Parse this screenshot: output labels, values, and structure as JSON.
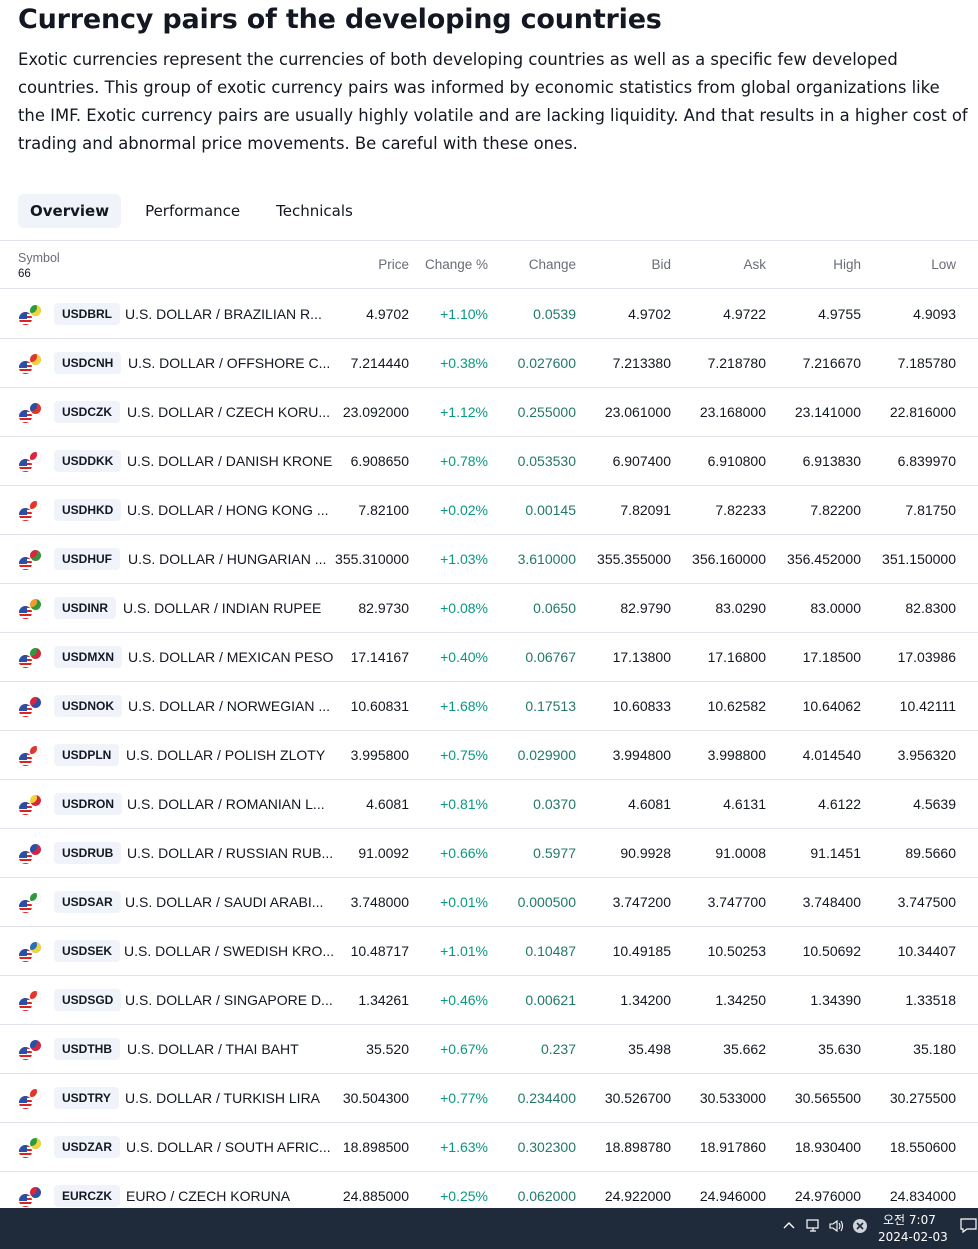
{
  "page": {
    "title": "Currency pairs of the developing countries",
    "description": "Exotic currencies represent the currencies of both developing countries as well as a specific few developed countries. This group of exotic currency pairs was informed by economic statistics from global organizations like the IMF. Exotic currency pairs are usually highly volatile and are lacking liquidity. And that results in a higher cost of trading and abnormal price movements. Be careful with these ones."
  },
  "tabs": [
    {
      "label": "Overview",
      "active": true
    },
    {
      "label": "Performance",
      "active": false
    },
    {
      "label": "Technicals",
      "active": false
    }
  ],
  "table": {
    "symbol_header": "Symbol",
    "symbol_count": "66",
    "headers": {
      "price": "Price",
      "change_pct": "Change %",
      "change": "Change",
      "bid": "Bid",
      "ask": "Ask",
      "high": "High",
      "low": "Low"
    },
    "rows": [
      {
        "symbol": "USDBRL",
        "name": "U.S. DOLLAR / BRAZILIAN R...",
        "price": "4.9702",
        "change_pct": "+1.10%",
        "change": "0.0539",
        "bid": "4.9702",
        "ask": "4.9722",
        "high": "4.9755",
        "low": "4.9093",
        "flag_color": "#2e9a3e",
        "flag_accent": "#f3d33a"
      },
      {
        "symbol": "USDCNH",
        "name": "U.S. DOLLAR / OFFSHORE C...",
        "price": "7.214440",
        "change_pct": "+0.38%",
        "change": "0.027600",
        "bid": "7.213380",
        "ask": "7.218780",
        "high": "7.216670",
        "low": "7.185780",
        "flag_color": "#e0362c",
        "flag_accent": "#f3d33a"
      },
      {
        "symbol": "USDCZK",
        "name": "U.S. DOLLAR / CZECH KORU...",
        "price": "23.092000",
        "change_pct": "+1.12%",
        "change": "0.255000",
        "bid": "23.061000",
        "ask": "23.168000",
        "high": "23.141000",
        "low": "22.816000",
        "flag_color": "#2b4fa5",
        "flag_accent": "#e0362c"
      },
      {
        "symbol": "USDDKK",
        "name": "U.S. DOLLAR / DANISH KRONE",
        "price": "6.908650",
        "change_pct": "+0.78%",
        "change": "0.053530",
        "bid": "6.907400",
        "ask": "6.910800",
        "high": "6.913830",
        "low": "6.839970",
        "flag_color": "#d7263d",
        "flag_accent": "#ffffff"
      },
      {
        "symbol": "USDHKD",
        "name": "U.S. DOLLAR / HONG KONG ...",
        "price": "7.82100",
        "change_pct": "+0.02%",
        "change": "0.00145",
        "bid": "7.82091",
        "ask": "7.82233",
        "high": "7.82200",
        "low": "7.81750",
        "flag_color": "#e0362c",
        "flag_accent": "#ffffff"
      },
      {
        "symbol": "USDHUF",
        "name": "U.S. DOLLAR / HUNGARIAN ...",
        "price": "355.310000",
        "change_pct": "+1.03%",
        "change": "3.610000",
        "bid": "355.355000",
        "ask": "356.160000",
        "high": "356.452000",
        "low": "351.150000",
        "flag_color": "#d7263d",
        "flag_accent": "#2e9a3e"
      },
      {
        "symbol": "USDINR",
        "name": "U.S. DOLLAR / INDIAN RUPEE",
        "price": "82.9730",
        "change_pct": "+0.08%",
        "change": "0.0650",
        "bid": "82.9790",
        "ask": "83.0290",
        "high": "83.0000",
        "low": "82.8300",
        "flag_color": "#f39a2b",
        "flag_accent": "#2e9a3e"
      },
      {
        "symbol": "USDMXN",
        "name": "U.S. DOLLAR / MEXICAN PESO",
        "price": "17.14167",
        "change_pct": "+0.40%",
        "change": "0.06767",
        "bid": "17.13800",
        "ask": "17.16800",
        "high": "17.18500",
        "low": "17.03986",
        "flag_color": "#2e9a3e",
        "flag_accent": "#d7263d"
      },
      {
        "symbol": "USDNOK",
        "name": "U.S. DOLLAR / NORWEGIAN ...",
        "price": "10.60831",
        "change_pct": "+1.68%",
        "change": "0.17513",
        "bid": "10.60833",
        "ask": "10.62582",
        "high": "10.64062",
        "low": "10.42111",
        "flag_color": "#d7263d",
        "flag_accent": "#2b4fa5"
      },
      {
        "symbol": "USDPLN",
        "name": "U.S. DOLLAR / POLISH ZLOTY",
        "price": "3.995800",
        "change_pct": "+0.75%",
        "change": "0.029900",
        "bid": "3.994800",
        "ask": "3.998800",
        "high": "4.014540",
        "low": "3.956320",
        "flag_color": "#e0362c",
        "flag_accent": "#ffffff"
      },
      {
        "symbol": "USDRON",
        "name": "U.S. DOLLAR / ROMANIAN L...",
        "price": "4.6081",
        "change_pct": "+0.81%",
        "change": "0.0370",
        "bid": "4.6081",
        "ask": "4.6131",
        "high": "4.6122",
        "low": "4.5639",
        "flag_color": "#f3d33a",
        "flag_accent": "#d7263d"
      },
      {
        "symbol": "USDRUB",
        "name": "U.S. DOLLAR / RUSSIAN RUB...",
        "price": "91.0092",
        "change_pct": "+0.66%",
        "change": "0.5977",
        "bid": "90.9928",
        "ask": "91.0008",
        "high": "91.1451",
        "low": "89.5660",
        "flag_color": "#2b4fa5",
        "flag_accent": "#d7263d"
      },
      {
        "symbol": "USDSAR",
        "name": "U.S. DOLLAR / SAUDI ARABI...",
        "price": "3.748000",
        "change_pct": "+0.01%",
        "change": "0.000500",
        "bid": "3.747200",
        "ask": "3.747700",
        "high": "3.748400",
        "low": "3.747500",
        "flag_color": "#2e9a3e",
        "flag_accent": "#ffffff"
      },
      {
        "symbol": "USDSEK",
        "name": "U.S. DOLLAR / SWEDISH KRO...",
        "price": "10.48717",
        "change_pct": "+1.01%",
        "change": "0.10487",
        "bid": "10.49185",
        "ask": "10.50253",
        "high": "10.50692",
        "low": "10.34407",
        "flag_color": "#2b6fb5",
        "flag_accent": "#f3d33a"
      },
      {
        "symbol": "USDSGD",
        "name": "U.S. DOLLAR / SINGAPORE D...",
        "price": "1.34261",
        "change_pct": "+0.46%",
        "change": "0.00621",
        "bid": "1.34200",
        "ask": "1.34250",
        "high": "1.34390",
        "low": "1.33518",
        "flag_color": "#e0362c",
        "flag_accent": "#ffffff"
      },
      {
        "symbol": "USDTHB",
        "name": "U.S. DOLLAR / THAI BAHT",
        "price": "35.520",
        "change_pct": "+0.67%",
        "change": "0.237",
        "bid": "35.498",
        "ask": "35.662",
        "high": "35.630",
        "low": "35.180",
        "flag_color": "#2b4fa5",
        "flag_accent": "#d7263d"
      },
      {
        "symbol": "USDTRY",
        "name": "U.S. DOLLAR / TURKISH LIRA",
        "price": "30.504300",
        "change_pct": "+0.77%",
        "change": "0.234400",
        "bid": "30.526700",
        "ask": "30.533000",
        "high": "30.565500",
        "low": "30.275500",
        "flag_color": "#e0362c",
        "flag_accent": "#ffffff"
      },
      {
        "symbol": "USDZAR",
        "name": "U.S. DOLLAR / SOUTH AFRIC...",
        "price": "18.898500",
        "change_pct": "+1.63%",
        "change": "0.302300",
        "bid": "18.898780",
        "ask": "18.917860",
        "high": "18.930400",
        "low": "18.550600",
        "flag_color": "#2e9a3e",
        "flag_accent": "#f3d33a"
      },
      {
        "symbol": "EURCZK",
        "name": "EURO / CZECH KORUNA",
        "price": "24.885000",
        "change_pct": "+0.25%",
        "change": "0.062000",
        "bid": "24.922000",
        "ask": "24.946000",
        "high": "24.976000",
        "low": "24.834000",
        "flag_color": "#d7263d",
        "flag_accent": "#2b4fa5"
      }
    ]
  },
  "taskbar": {
    "time": "오전 7:07",
    "date": "2024-02-03",
    "icons": [
      "chevron-up-icon",
      "network-icon",
      "volume-icon",
      "close-circle-icon",
      "notification-icon"
    ]
  }
}
